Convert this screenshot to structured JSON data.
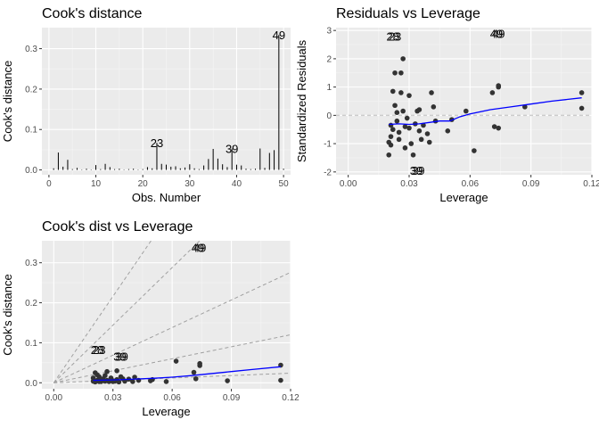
{
  "chart_data": [
    {
      "type": "bar",
      "title": "Cook's distance",
      "xlabel": "Obs. Number",
      "ylabel": "Cook's distance",
      "xlim": [
        -1.5,
        51.5
      ],
      "ylim": [
        -0.012,
        0.352
      ],
      "xticks": [
        0,
        10,
        20,
        30,
        40,
        50
      ],
      "yticks": [
        0.0,
        0.1,
        0.2,
        0.3
      ],
      "ytick_labels": [
        "0.0",
        "0.1",
        "0.2",
        "0.3"
      ],
      "grid": true,
      "x": [
        1,
        2,
        3,
        4,
        5,
        6,
        7,
        8,
        9,
        10,
        11,
        12,
        13,
        14,
        15,
        16,
        17,
        18,
        19,
        20,
        21,
        22,
        23,
        24,
        25,
        26,
        27,
        28,
        29,
        30,
        31,
        32,
        33,
        34,
        35,
        36,
        37,
        38,
        39,
        40,
        41,
        42,
        43,
        44,
        45,
        46,
        47,
        48,
        49,
        50
      ],
      "values": [
        0.004,
        0.043,
        0.008,
        0.025,
        0.002,
        0.005,
        0.001,
        0.003,
        0.001,
        0.012,
        0.002,
        0.015,
        0.007,
        0.002,
        0.003,
        0.001,
        0.002,
        0.003,
        0.001,
        0.002,
        0.007,
        0.004,
        0.067,
        0.015,
        0.013,
        0.008,
        0.009,
        0.004,
        0.006,
        0.014,
        0.004,
        0.002,
        0.011,
        0.027,
        0.052,
        0.028,
        0.014,
        0.007,
        0.053,
        0.013,
        0.011,
        0.003,
        0.002,
        0.003,
        0.053,
        0.005,
        0.042,
        0.049,
        0.334,
        0.003
      ],
      "labels": [
        {
          "x": 23,
          "y": 0.067,
          "text": "23"
        },
        {
          "x": 39,
          "y": 0.053,
          "text": "39"
        },
        {
          "x": 49,
          "y": 0.334,
          "text": "49"
        }
      ]
    },
    {
      "type": "scatter",
      "title": "Residuals vs Leverage",
      "xlabel": "Leverage",
      "ylabel": "Standardized Residuals",
      "xlim": [
        -0.006,
        0.12
      ],
      "ylim": [
        -2.1,
        3.1
      ],
      "xticks": [
        0.0,
        0.03,
        0.06,
        0.09,
        0.12
      ],
      "xtick_labels": [
        "0.00",
        "0.03",
        "0.06",
        "0.09",
        "0.12"
      ],
      "yticks": [
        -2,
        -1,
        0,
        1,
        2,
        3
      ],
      "ytick_labels": [
        "-2",
        "-1",
        "0",
        "1",
        "2",
        "3"
      ],
      "grid": true,
      "reference_line": 0,
      "points": [
        [
          0.021,
          -0.35
        ],
        [
          0.021,
          -0.75
        ],
        [
          0.02,
          -0.95
        ],
        [
          0.02,
          -1.4
        ],
        [
          0.021,
          -1.05
        ],
        [
          0.022,
          -0.5
        ],
        [
          0.022,
          0.85
        ],
        [
          0.023,
          1.5
        ],
        [
          0.023,
          0.35
        ],
        [
          0.024,
          0.1
        ],
        [
          0.024,
          -0.2
        ],
        [
          0.025,
          -0.6
        ],
        [
          0.025,
          -0.85
        ],
        [
          0.026,
          0.8
        ],
        [
          0.026,
          1.5
        ],
        [
          0.027,
          2.0
        ],
        [
          0.027,
          0.15
        ],
        [
          0.028,
          -0.4
        ],
        [
          0.028,
          -1.15
        ],
        [
          0.029,
          -0.1
        ],
        [
          0.03,
          0.7
        ],
        [
          0.03,
          -0.45
        ],
        [
          0.031,
          -1.0
        ],
        [
          0.032,
          -1.4
        ],
        [
          0.033,
          -0.3
        ],
        [
          0.034,
          0.15
        ],
        [
          0.035,
          0.2
        ],
        [
          0.035,
          -0.55
        ],
        [
          0.036,
          -0.85
        ],
        [
          0.037,
          -0.35
        ],
        [
          0.039,
          -0.65
        ],
        [
          0.04,
          -0.95
        ],
        [
          0.041,
          0.8
        ],
        [
          0.042,
          0.3
        ],
        [
          0.043,
          -0.2
        ],
        [
          0.049,
          -0.55
        ],
        [
          0.051,
          -0.15
        ],
        [
          0.058,
          0.15
        ],
        [
          0.062,
          -1.25
        ],
        [
          0.071,
          0.8
        ],
        [
          0.072,
          -0.4
        ],
        [
          0.074,
          -0.45
        ],
        [
          0.074,
          1.0
        ],
        [
          0.074,
          1.05
        ],
        [
          0.087,
          0.3
        ],
        [
          0.115,
          0.8
        ],
        [
          0.115,
          0.25
        ]
      ],
      "labels": [
        {
          "x": 0.022,
          "y": 2.8,
          "text": "28"
        },
        {
          "x": 0.023,
          "y": 2.8,
          "text": "23"
        },
        {
          "x": 0.0335,
          "y": -1.95,
          "text": "39"
        },
        {
          "x": 0.0345,
          "y": -1.95,
          "text": "39"
        },
        {
          "x": 0.073,
          "y": 2.9,
          "text": "49"
        },
        {
          "x": 0.074,
          "y": 2.9,
          "text": "49"
        }
      ],
      "smooth_line": [
        [
          0.02,
          -0.32
        ],
        [
          0.025,
          -0.3
        ],
        [
          0.03,
          -0.32
        ],
        [
          0.035,
          -0.3
        ],
        [
          0.04,
          -0.25
        ],
        [
          0.045,
          -0.2
        ],
        [
          0.05,
          -0.2
        ],
        [
          0.055,
          -0.05
        ],
        [
          0.06,
          0.05
        ],
        [
          0.07,
          0.2
        ],
        [
          0.08,
          0.3
        ],
        [
          0.09,
          0.4
        ],
        [
          0.1,
          0.5
        ],
        [
          0.115,
          0.62
        ]
      ],
      "smooth_color": "#0000ff"
    },
    {
      "type": "scatter",
      "title": "Cook's dist vs Leverage",
      "xlabel": "Leverage",
      "ylabel": "Cook's distance",
      "xlim": [
        -0.006,
        0.12
      ],
      "ylim": [
        -0.015,
        0.355
      ],
      "xticks": [
        0.0,
        0.03,
        0.06,
        0.09,
        0.12
      ],
      "xtick_labels": [
        "0.00",
        "0.03",
        "0.06",
        "0.09",
        "0.12"
      ],
      "yticks": [
        0.0,
        0.1,
        0.2,
        0.3
      ],
      "ytick_labels": [
        "0.0",
        "0.1",
        "0.2",
        "0.3"
      ],
      "grid": true,
      "contour_slopes": [
        0.2,
        1.0,
        2.3,
        4.8,
        7.2
      ],
      "points": [
        [
          0.02,
          0.004
        ],
        [
          0.02,
          0.012
        ],
        [
          0.021,
          0.025
        ],
        [
          0.021,
          0.002
        ],
        [
          0.022,
          0.02
        ],
        [
          0.022,
          0.006
        ],
        [
          0.023,
          0.015
        ],
        [
          0.024,
          0.008
        ],
        [
          0.024,
          0.003
        ],
        [
          0.025,
          0.01
        ],
        [
          0.026,
          0.004
        ],
        [
          0.026,
          0.018
        ],
        [
          0.027,
          0.028
        ],
        [
          0.027,
          0.006
        ],
        [
          0.028,
          0.003
        ],
        [
          0.029,
          0.012
        ],
        [
          0.03,
          0.005
        ],
        [
          0.031,
          0.004
        ],
        [
          0.032,
          0.03
        ],
        [
          0.032,
          0.008
        ],
        [
          0.033,
          0.002
        ],
        [
          0.034,
          0.015
        ],
        [
          0.035,
          0.01
        ],
        [
          0.036,
          0.004
        ],
        [
          0.038,
          0.009
        ],
        [
          0.04,
          0.003
        ],
        [
          0.041,
          0.014
        ],
        [
          0.043,
          0.006
        ],
        [
          0.049,
          0.005
        ],
        [
          0.05,
          0.008
        ],
        [
          0.057,
          0.003
        ],
        [
          0.062,
          0.054
        ],
        [
          0.071,
          0.026
        ],
        [
          0.072,
          0.01
        ],
        [
          0.074,
          0.043
        ],
        [
          0.074,
          0.048
        ],
        [
          0.088,
          0.005
        ],
        [
          0.115,
          0.044
        ],
        [
          0.115,
          0.006
        ],
        [
          0.03,
          0.003
        ],
        [
          0.023,
          0.003
        ]
      ],
      "labels": [
        {
          "x": 0.022,
          "y": 0.083,
          "text": "28"
        },
        {
          "x": 0.023,
          "y": 0.083,
          "text": "23"
        },
        {
          "x": 0.0335,
          "y": 0.066,
          "text": "39"
        },
        {
          "x": 0.0345,
          "y": 0.066,
          "text": "39"
        },
        {
          "x": 0.073,
          "y": 0.338,
          "text": "49"
        },
        {
          "x": 0.074,
          "y": 0.338,
          "text": "49"
        }
      ],
      "smooth_line": [
        [
          0.02,
          0.006
        ],
        [
          0.03,
          0.007
        ],
        [
          0.04,
          0.009
        ],
        [
          0.05,
          0.011
        ],
        [
          0.06,
          0.014
        ],
        [
          0.07,
          0.018
        ],
        [
          0.08,
          0.023
        ],
        [
          0.09,
          0.028
        ],
        [
          0.1,
          0.033
        ],
        [
          0.115,
          0.04
        ]
      ],
      "smooth_color": "#0000ff"
    }
  ]
}
